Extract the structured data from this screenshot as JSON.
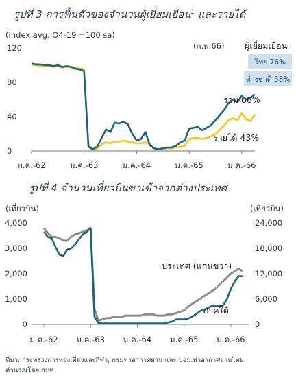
{
  "source_lines": [
    "ที่มา: กระทรวงการท่องเที่ยวและกีฬา, กรมท่าอากาศยาน และ บจม.ท่าอากาศยานไทย",
    "คำนวณโดย ธปท."
  ],
  "chart_data": [
    {
      "type": "line",
      "title": "รูปที่ 3 การฟื้นตัวของจำนวนผู้เยี่ยมเยือน",
      "title_superscript": "1",
      "title_suffix": " และรายได้",
      "ylabel": "(Index avg. Q4-19 =100 sa)",
      "ylim": [
        0,
        120
      ],
      "yticks": [
        0,
        40,
        80,
        120
      ],
      "x_tick_labels": [
        "ม.ค.-62",
        "ม.ค.-63",
        "ม.ค.-64",
        "ม.ค.-65",
        "ม.ค.-66"
      ],
      "period_note": "(ก.พ.66)",
      "legend_header": "ผู้เยี่ยมเยือน",
      "legend_items": [
        "ไทย 76%",
        "ต่างชาติ 58%"
      ],
      "colors": {
        "visitors_total": "#1d6375",
        "revenue": "#f7c51e",
        "legend_box": "#cfe0ef"
      },
      "series": [
        {
          "name": "รวม",
          "label": "รวม 66%",
          "values": [
            102,
            101,
            101,
            100,
            100,
            99,
            100,
            98,
            99,
            98,
            96,
            95,
            93,
            5,
            2,
            5,
            15,
            25,
            22,
            33,
            32,
            34,
            31,
            20,
            12,
            14,
            22,
            7,
            3,
            2,
            3,
            4,
            4,
            6,
            10,
            12,
            26,
            27,
            28,
            24,
            27,
            30,
            36,
            42,
            48,
            56,
            60,
            57,
            64,
            60,
            62,
            66
          ]
        },
        {
          "name": "รายได้",
          "label": "รายได้ 43%",
          "values": [
            100,
            100,
            99,
            99,
            99,
            98,
            99,
            97,
            98,
            98,
            97,
            96,
            95,
            5,
            1,
            3,
            8,
            10,
            9,
            11,
            11,
            12,
            11,
            10,
            9,
            9,
            10,
            7,
            3,
            2,
            3,
            3,
            3,
            4,
            5,
            6,
            14,
            15,
            15,
            14,
            15,
            17,
            20,
            25,
            30,
            36,
            38,
            36,
            44,
            37,
            35,
            43
          ]
        }
      ]
    },
    {
      "type": "line",
      "title": "รูปที่ 4 จำนวนเที่ยวบินขาเข้าจากต่างประเทศ",
      "ylabel": "(เที่ยวบิน)",
      "ylabel_right": "(เที่ยวบิน)",
      "ylim": [
        0,
        4000
      ],
      "yticks": [
        0,
        1000,
        2000,
        3000,
        4000
      ],
      "yticks_labels": [
        "0",
        "1,000",
        "2,000",
        "3,000",
        "4,000"
      ],
      "ylim_right": [
        0,
        24000
      ],
      "yticks_right_labels": [
        "0",
        "6,000",
        "12,000",
        "18,000",
        "24,000"
      ],
      "x_tick_labels": [
        "ม.ค.-62",
        "ม.ค.-63",
        "ม.ค.-64",
        "ม.ค.-65",
        "ม.ค.-66"
      ],
      "colors": {
        "international": "#8c8c8c",
        "domestic": "#1d6375"
      },
      "series": [
        {
          "name": "ประเทศ (แกนขวา)",
          "axis": "right",
          "values": [
            22800,
            21600,
            20700,
            20700,
            20400,
            19800,
            19800,
            20700,
            21300,
            21600,
            21900,
            22200,
            22800,
            3600,
            900,
            1200,
            1500,
            1500,
            1800,
            1800,
            1800,
            2100,
            2100,
            2100,
            2100,
            2100,
            2400,
            2400,
            2400,
            2100,
            2100,
            2100,
            2400,
            2400,
            2700,
            3000,
            3300,
            4200,
            4800,
            5400,
            6000,
            6600,
            7200,
            7800,
            8400,
            9300,
            10200,
            11100,
            12000,
            12600,
            13200,
            12600
          ]
        },
        {
          "name": "ภาคใต้",
          "axis": "left",
          "values": [
            3650,
            3450,
            3400,
            3050,
            2750,
            2700,
            2950,
            3000,
            3150,
            3350,
            3550,
            3650,
            3800,
            300,
            60,
            40,
            40,
            40,
            40,
            40,
            40,
            40,
            40,
            40,
            40,
            40,
            40,
            40,
            40,
            40,
            40,
            40,
            80,
            120,
            200,
            200,
            200,
            230,
            300,
            400,
            520,
            580,
            640,
            720,
            720,
            720,
            760,
            1000,
            1400,
            1700,
            1900,
            1900
          ]
        }
      ]
    }
  ]
}
